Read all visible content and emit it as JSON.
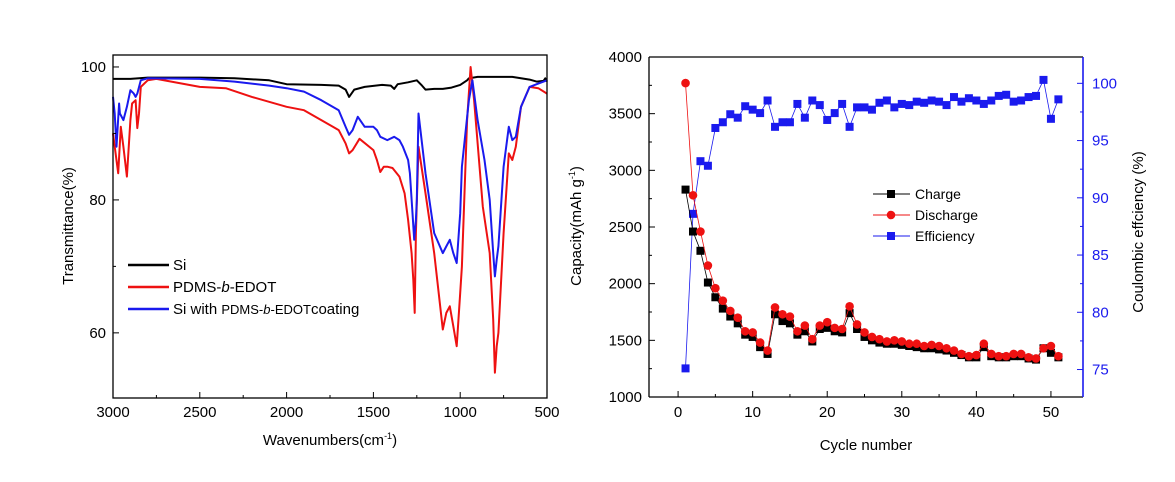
{
  "chart_data": [
    {
      "type": "line",
      "title": "",
      "xlabel": "Wavenumbers(cm",
      "xlabel_sup": "-1",
      "xlabel_end": ")",
      "ylabel": "Transmittance(%)",
      "xlim": [
        3000,
        500
      ],
      "ylim": [
        50.2,
        101.8
      ],
      "xticks": [
        3000,
        2500,
        2000,
        1500,
        1000,
        500
      ],
      "yticks": [
        60,
        80,
        100
      ],
      "grid": false,
      "legend_placement": "lower-left",
      "series": [
        {
          "name": "Si",
          "color": "#000000",
          "legend_parts": [
            {
              "text": "Si"
            }
          ],
          "x": [
            3000,
            2900,
            2800,
            2500,
            2300,
            2100,
            2000,
            1800,
            1700,
            1660,
            1640,
            1610,
            1550,
            1450,
            1400,
            1380,
            1360,
            1300,
            1250,
            1220,
            1200,
            1150,
            1100,
            1050,
            1000,
            960,
            950,
            900,
            800,
            700,
            600,
            560,
            520,
            510,
            500
          ],
          "y": [
            98.2,
            98.2,
            98.4,
            98.4,
            98.3,
            98,
            97.4,
            97.3,
            97.2,
            96.6,
            95.5,
            96.6,
            97,
            97.3,
            97.2,
            96.7,
            97.4,
            97.7,
            98,
            97.2,
            96.6,
            96.7,
            96.7,
            96.9,
            97.3,
            98,
            98.3,
            98.5,
            98.5,
            98.5,
            98.1,
            97.8,
            97.9,
            98.3,
            97.8
          ]
        },
        {
          "name": "PDMS-b-EDOT",
          "color": "#ee1111",
          "legend_parts": [
            {
              "text": "PDMS-"
            },
            {
              "text": "b",
              "italic": true
            },
            {
              "text": "-EDOT"
            }
          ],
          "x": [
            3000,
            2985,
            2970,
            2955,
            2940,
            2920,
            2900,
            2890,
            2870,
            2860,
            2850,
            2840,
            2800,
            2750,
            2500,
            2350,
            2200,
            2000,
            1900,
            1800,
            1700,
            1660,
            1640,
            1620,
            1580,
            1500,
            1480,
            1460,
            1440,
            1420,
            1390,
            1350,
            1320,
            1300,
            1280,
            1270,
            1262,
            1255,
            1245,
            1240,
            1200,
            1150,
            1100,
            1080,
            1060,
            1040,
            1020,
            1000,
            990,
            960,
            940,
            920,
            870,
            830,
            810,
            800,
            790,
            780,
            750,
            720,
            700,
            680,
            650,
            600,
            550,
            500
          ],
          "y": [
            90,
            87,
            84,
            91,
            88,
            83.5,
            92,
            94.5,
            95,
            90.8,
            93,
            97,
            98,
            98.2,
            97,
            96.8,
            95.5,
            94,
            93.5,
            92,
            90.5,
            88.5,
            87,
            87.5,
            89.2,
            87.5,
            86,
            84.2,
            85,
            85,
            84.8,
            83.5,
            81,
            77,
            72,
            68,
            63,
            75,
            84,
            88,
            81,
            72,
            60.5,
            63,
            64,
            61,
            58,
            66,
            70,
            92,
            100,
            95,
            79,
            72,
            62,
            54,
            58,
            60,
            75,
            87,
            86,
            88,
            94,
            97,
            96.8,
            96
          ]
        },
        {
          "name": "Si with PDMS-b-EDOTcoating",
          "color": "#1a1aee",
          "legend_parts": [
            {
              "text": "Si with "
            },
            {
              "text": "PDMS-",
              "small": true
            },
            {
              "text": "b",
              "italic": true,
              "small": true
            },
            {
              "text": "-EDOT",
              "small": true
            },
            {
              "text": "coating"
            }
          ],
          "x": [
            3000,
            2990,
            2980,
            2965,
            2960,
            2940,
            2920,
            2900,
            2880,
            2870,
            2860,
            2840,
            2800,
            2500,
            2300,
            2100,
            2000,
            1900,
            1800,
            1700,
            1660,
            1640,
            1620,
            1590,
            1550,
            1500,
            1480,
            1460,
            1420,
            1380,
            1350,
            1330,
            1300,
            1290,
            1275,
            1265,
            1255,
            1250,
            1240,
            1200,
            1150,
            1100,
            1080,
            1060,
            1040,
            1020,
            1000,
            990,
            950,
            930,
            900,
            860,
            830,
            810,
            800,
            790,
            780,
            750,
            720,
            700,
            680,
            650,
            600,
            550,
            500
          ],
          "y": [
            95.5,
            93,
            88,
            94.5,
            93,
            92,
            94,
            96.5,
            96,
            95.5,
            96,
            98,
            98.3,
            98.2,
            97.8,
            97.2,
            96.8,
            96.3,
            95,
            93.5,
            91,
            89.8,
            90.5,
            92.5,
            91,
            91,
            90.5,
            89.5,
            89,
            89.5,
            89,
            88,
            86,
            84,
            78,
            74,
            77,
            80,
            93,
            84,
            75,
            72,
            73,
            74,
            72,
            70.5,
            78,
            85,
            95,
            98,
            92,
            86,
            80,
            72,
            68.5,
            71,
            73,
            85,
            91,
            89,
            89.5,
            94,
            97,
            97.5,
            98
          ]
        }
      ]
    },
    {
      "type": "line",
      "title": "",
      "xlabel": "Cycle number",
      "ylabel": "Capacity(mAh g",
      "ylabel_sup": "-1",
      "ylabel_end": ")",
      "y2label": "Coulombic effciency (%)",
      "xlim": [
        -3.9,
        54.3
      ],
      "ylim": [
        1000,
        4000
      ],
      "y2lim": [
        72.6,
        102.3
      ],
      "xticks": [
        0,
        10,
        20,
        30,
        40,
        50
      ],
      "yticks": [
        1000,
        1500,
        2000,
        2500,
        3000,
        3500,
        4000
      ],
      "y2ticks": [
        75,
        80,
        85,
        90,
        95,
        100
      ],
      "grid": false,
      "legend_placement": "center",
      "x": [
        1,
        2,
        3,
        4,
        5,
        6,
        7,
        8,
        9,
        10,
        11,
        12,
        13,
        14,
        15,
        16,
        17,
        18,
        19,
        20,
        21,
        22,
        23,
        24,
        25,
        26,
        27,
        28,
        29,
        30,
        31,
        32,
        33,
        34,
        35,
        36,
        37,
        38,
        39,
        40,
        41,
        42,
        43,
        44,
        45,
        46,
        47,
        48,
        49,
        50,
        51
      ],
      "series": [
        {
          "name": "Charge",
          "axis": "left",
          "color": "#000000",
          "marker": "square",
          "values": [
            2830,
            2460,
            2290,
            2010,
            1880,
            1780,
            1710,
            1650,
            1550,
            1530,
            1440,
            1380,
            1730,
            1670,
            1650,
            1550,
            1580,
            1490,
            1600,
            1610,
            1580,
            1570,
            1740,
            1600,
            1530,
            1500,
            1480,
            1470,
            1470,
            1460,
            1450,
            1440,
            1430,
            1430,
            1420,
            1410,
            1390,
            1370,
            1350,
            1350,
            1440,
            1360,
            1350,
            1350,
            1360,
            1360,
            1340,
            1330,
            1430,
            1390,
            1350
          ]
        },
        {
          "name": "Discharge",
          "axis": "left",
          "color": "#ee1111",
          "marker": "circle",
          "values": [
            3770,
            2780,
            2460,
            2160,
            1960,
            1850,
            1760,
            1700,
            1580,
            1570,
            1480,
            1410,
            1790,
            1730,
            1710,
            1580,
            1630,
            1510,
            1630,
            1660,
            1610,
            1600,
            1800,
            1640,
            1570,
            1530,
            1510,
            1490,
            1500,
            1490,
            1470,
            1470,
            1450,
            1460,
            1450,
            1430,
            1410,
            1380,
            1360,
            1370,
            1470,
            1380,
            1360,
            1360,
            1380,
            1380,
            1350,
            1340,
            1430,
            1450,
            1360
          ]
        },
        {
          "name": "Efficiency",
          "axis": "right",
          "color": "#1a1aee",
          "marker": "square",
          "values": [
            75.1,
            88.6,
            93.2,
            92.8,
            96.1,
            96.6,
            97.3,
            97.0,
            98.0,
            97.7,
            97.4,
            98.5,
            96.2,
            96.6,
            96.6,
            98.2,
            97.0,
            98.5,
            98.1,
            96.8,
            97.4,
            98.2,
            96.2,
            97.9,
            97.9,
            97.7,
            98.3,
            98.5,
            97.9,
            98.2,
            98.1,
            98.4,
            98.3,
            98.5,
            98.4,
            98.1,
            98.8,
            98.4,
            98.7,
            98.5,
            98.2,
            98.5,
            98.9,
            99.0,
            98.4,
            98.5,
            98.8,
            98.9,
            100.3,
            96.9,
            98.6
          ]
        }
      ]
    }
  ]
}
